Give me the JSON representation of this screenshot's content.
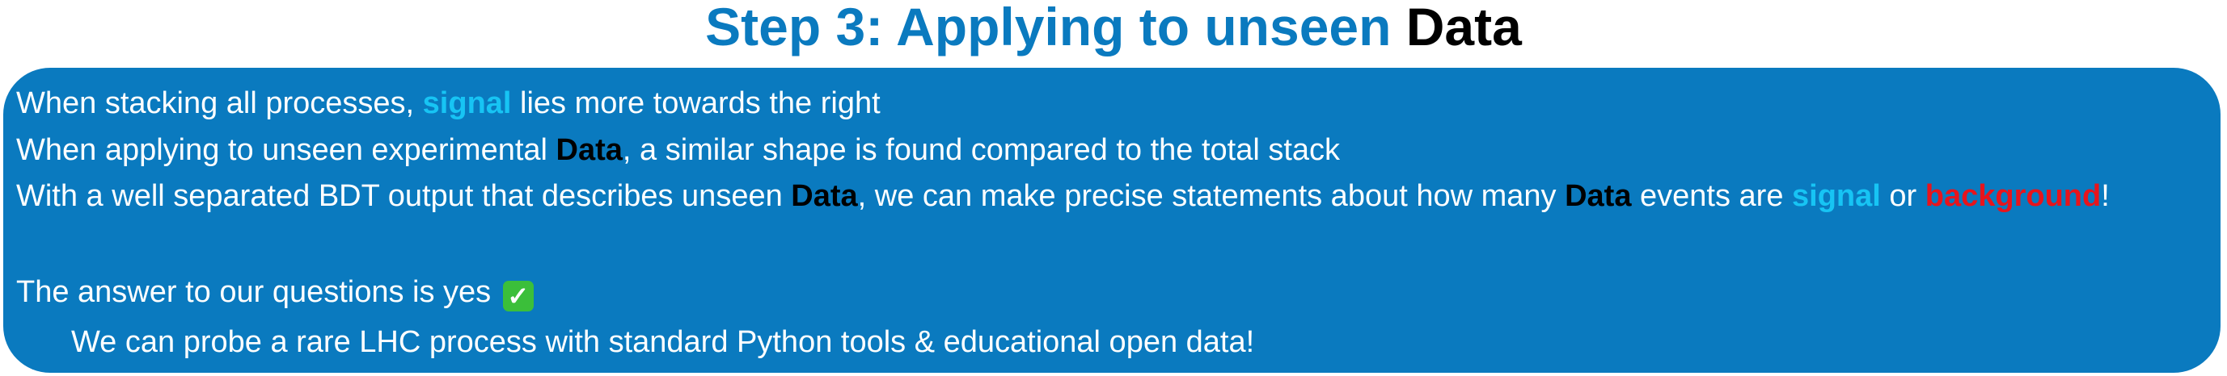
{
  "title": {
    "main": "Step 3: Applying to unseen ",
    "emphasis": "Data"
  },
  "lines": {
    "l1": {
      "a": "When stacking all processes, ",
      "signal": "signal",
      "b": " lies more towards the right"
    },
    "l2": {
      "a": "When applying to unseen experimental ",
      "data": "Data",
      "b": ", a similar shape is found compared to the total stack"
    },
    "l3": {
      "a": "With a well separated BDT output that describes unseen ",
      "data1": "Data",
      "b": ", we can make precise statements about how many ",
      "data2": "Data",
      "c": " events are ",
      "signal": "signal",
      "d": " or ",
      "background": "background",
      "e": "!"
    },
    "l4": {
      "a": "The answer to our questions is yes ",
      "check_icon": "white-check-mark-icon"
    },
    "l5": {
      "a": "We can probe a rare LHC process with standard Python tools & educational open data!"
    }
  },
  "colors": {
    "accent_blue": "#0a7abf",
    "signal": "#17c4f4",
    "background": "#e8141c",
    "data": "#000000",
    "check": "#3bbf3a"
  }
}
